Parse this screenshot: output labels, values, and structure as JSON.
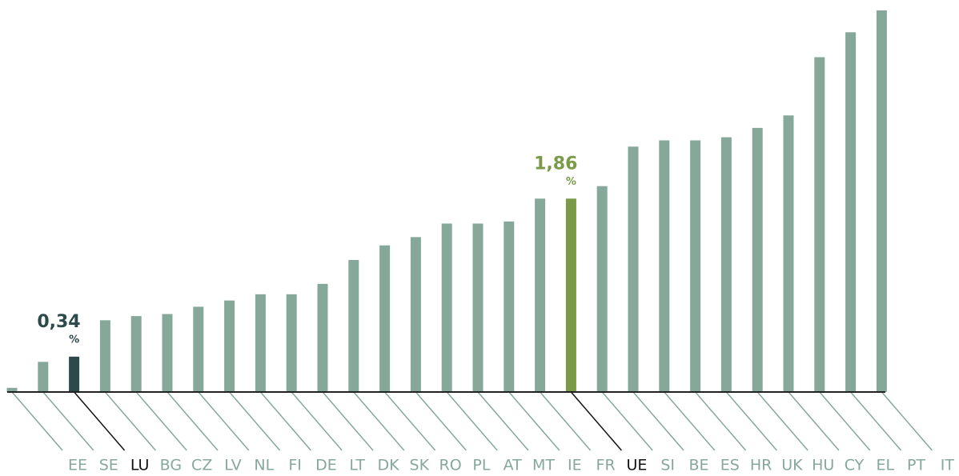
{
  "chart_data": {
    "type": "bar",
    "categories": [
      "EE",
      "SE",
      "LU",
      "BG",
      "CZ",
      "LV",
      "NL",
      "FI",
      "DE",
      "LT",
      "DK",
      "SK",
      "RO",
      "PL",
      "AT",
      "MT",
      "IE",
      "FR",
      "UE",
      "SI",
      "BE",
      "ES",
      "HR",
      "UK",
      "HU",
      "CY",
      "EL",
      "PT",
      "IT"
    ],
    "values": [
      0.04,
      0.29,
      0.34,
      0.69,
      0.73,
      0.75,
      0.82,
      0.88,
      0.94,
      0.94,
      1.04,
      1.27,
      1.41,
      1.49,
      1.62,
      1.62,
      1.64,
      1.86,
      1.86,
      1.98,
      2.36,
      2.42,
      2.42,
      2.45,
      2.54,
      2.66,
      3.22,
      3.46,
      3.67
    ],
    "value_labels": [
      null,
      null,
      "0,34",
      null,
      null,
      null,
      null,
      null,
      null,
      null,
      null,
      null,
      null,
      null,
      null,
      null,
      null,
      null,
      "1,86",
      null,
      null,
      null,
      null,
      null,
      null,
      null,
      null,
      null,
      null
    ],
    "value_unit": "%",
    "color": "#86a89b",
    "colors": [
      "#86a89b",
      "#86a89b",
      "#2d4a4a",
      "#86a89b",
      "#86a89b",
      "#86a89b",
      "#86a89b",
      "#86a89b",
      "#86a89b",
      "#86a89b",
      "#86a89b",
      "#86a89b",
      "#86a89b",
      "#86a89b",
      "#86a89b",
      "#86a89b",
      "#86a89b",
      "#86a89b",
      "#7a9a48",
      "#86a89b",
      "#86a89b",
      "#86a89b",
      "#86a89b",
      "#86a89b",
      "#86a89b",
      "#86a89b",
      "#86a89b",
      "#86a89b",
      "#86a89b"
    ],
    "highlight_label_color": "#111111",
    "ylim": [
      0,
      3.67
    ]
  }
}
